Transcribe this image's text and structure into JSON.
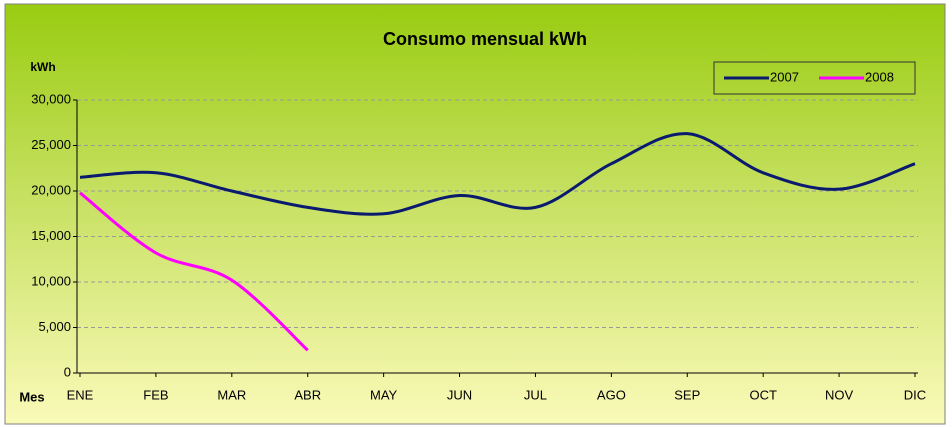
{
  "chart_data": {
    "type": "line",
    "title": "Consumo mensual kWh",
    "y_label": "kWh",
    "x_label": "Mes",
    "categories": [
      "ENE",
      "FEB",
      "MAR",
      "ABR",
      "MAY",
      "JUN",
      "JUL",
      "AGO",
      "SEP",
      "OCT",
      "NOV",
      "DIC"
    ],
    "series": [
      {
        "name": "2007",
        "color": "#0a1a6e",
        "values": [
          21500,
          22000,
          20000,
          18200,
          17500,
          19500,
          18200,
          23000,
          26300,
          22000,
          20200,
          23000
        ]
      },
      {
        "name": "2008",
        "color": "#ff00ff",
        "values": [
          19800,
          13200,
          10200,
          2500,
          null,
          null,
          null,
          null,
          null,
          null,
          null,
          null
        ]
      }
    ],
    "ylim": [
      0,
      30000
    ],
    "yticks": [
      0,
      {
        "value": 5000,
        "label": "5,000"
      },
      {
        "value": 10000,
        "label": "10,000"
      },
      {
        "value": 15000,
        "label": "15,000"
      },
      {
        "value": 20000,
        "label": "20,000"
      },
      {
        "value": 25000,
        "label": "25,000"
      },
      {
        "value": 30000,
        "label": "30,000"
      }
    ],
    "grid": true,
    "smooth": true,
    "legend": "top-right"
  }
}
